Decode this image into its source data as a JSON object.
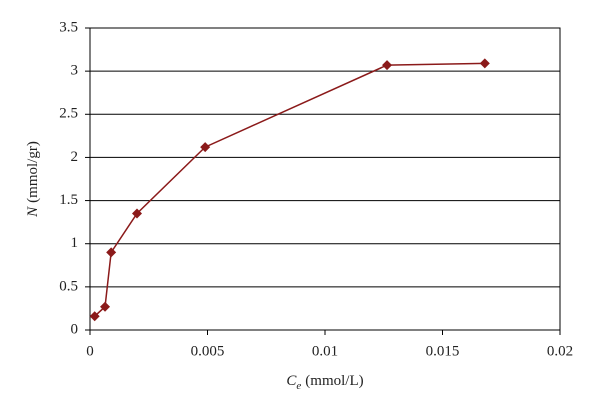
{
  "chart_data": {
    "type": "line",
    "x_label": {
      "symbol": "C",
      "subscript": "e",
      "unit": "(mmol/L)"
    },
    "y_label": {
      "symbol": "N",
      "unit": "(mmol/gr)"
    },
    "x": [
      0.0002,
      0.00064,
      0.0009,
      0.002,
      0.0049,
      0.01264,
      0.0168
    ],
    "series": [
      {
        "color": "#8b1a1a",
        "values": [
          0.16,
          0.27,
          0.9,
          1.35,
          2.12,
          3.07,
          3.09
        ]
      }
    ],
    "xlim": [
      0,
      0.02
    ],
    "xticks": [
      0,
      0.005,
      0.01,
      0.015,
      0.02
    ],
    "ylim": [
      0,
      3.5
    ],
    "yticks": [
      0,
      0.5,
      1,
      1.5,
      2,
      2.5,
      3,
      3.5
    ],
    "grid": true,
    "marker": "diamond"
  }
}
